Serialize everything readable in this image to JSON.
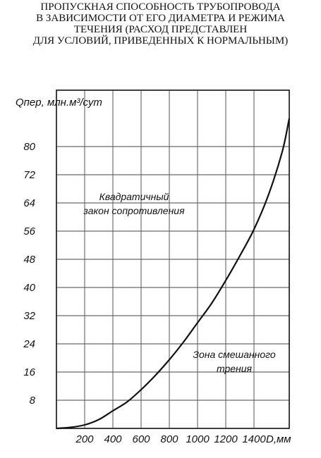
{
  "title_lines": [
    "ПРОПУСКНАЯ СПОСОБНОСТЬ ТРУБОПРОВОДА",
    "В ЗАВИСИМОСТИ ОТ ЕГО ДИАМЕТРА И РЕЖИМА",
    "ТЕЧЕНИЯ (РАСХОД ПРЕДСТАВЛЕН",
    "ДЛЯ УСЛОВИЙ, ПРИВЕДЕННЫХ К НОРМАЛЬНЫМ)"
  ],
  "chart_data": {
    "type": "line",
    "ylabel": "Qпер, млн.м³/сут",
    "xlabel": "D,мм",
    "xlim": [
      0,
      1650
    ],
    "ylim": [
      0,
      96
    ],
    "x_ticks": [
      200,
      400,
      600,
      800,
      1000,
      1200,
      1400
    ],
    "y_ticks": [
      8,
      16,
      24,
      32,
      40,
      48,
      56,
      64,
      72,
      80
    ],
    "y_tick_labels": [
      "8",
      "16",
      "24",
      "32",
      "40",
      "48",
      "56",
      "64",
      "72",
      "80"
    ],
    "grid": true,
    "series": [
      {
        "x": [
          0,
          100,
          200,
          300,
          400,
          500,
          600,
          700,
          800,
          900,
          1000,
          1100,
          1200,
          1300,
          1400,
          1500,
          1600,
          1650
        ],
        "y": [
          0,
          0.3,
          1,
          2.5,
          5,
          7.5,
          11,
          15,
          19.5,
          24.5,
          30,
          35.5,
          42,
          49,
          56.5,
          66,
          78.5,
          88
        ]
      }
    ],
    "annotations": [
      {
        "lines": [
          "Квадратичный",
          "закон сопротивления"
        ]
      },
      {
        "lines": [
          "Зона смешанного",
          "трения"
        ]
      }
    ]
  }
}
